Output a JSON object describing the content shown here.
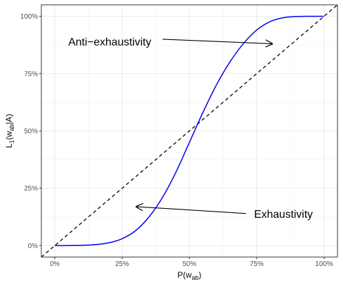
{
  "chart_data": {
    "type": "line",
    "x_axis": {
      "label": "P(w",
      "label_sub": "ab",
      "label_suffix": ")",
      "range": [
        -0.05,
        1.05
      ],
      "ticks": [
        0,
        0.25,
        0.5,
        0.75,
        1
      ],
      "tick_labels": [
        "0%",
        "25%",
        "50%",
        "75%",
        "100%"
      ]
    },
    "y_axis": {
      "label_parts": [
        "L",
        "1",
        "(w",
        "ab",
        "|A)"
      ],
      "range": [
        -0.05,
        1.05
      ],
      "ticks": [
        0,
        0.25,
        0.5,
        0.75,
        1
      ],
      "tick_labels": [
        "0%",
        "25%",
        "50%",
        "75%",
        "100%"
      ]
    },
    "grid": true,
    "series": [
      {
        "style": "solid",
        "color": "#0000ee",
        "x": [
          0,
          0.05,
          0.1,
          0.15,
          0.2,
          0.25,
          0.3,
          0.35,
          0.4,
          0.45,
          0.5,
          0.55,
          0.6,
          0.65,
          0.7,
          0.75,
          0.8,
          0.85,
          0.9,
          0.95,
          1
        ],
        "y": [
          0,
          0.0001,
          0.001,
          0.004,
          0.012,
          0.03,
          0.065,
          0.125,
          0.21,
          0.32,
          0.45,
          0.58,
          0.7,
          0.8,
          0.88,
          0.94,
          0.977,
          0.994,
          0.999,
          1,
          1
        ]
      },
      {
        "style": "dashed",
        "color": "#000000",
        "x": [
          -0.05,
          1.05
        ],
        "y": [
          -0.05,
          1.05
        ]
      }
    ],
    "annotations": [
      {
        "text": "Anti−exhaustivity",
        "text_x": 0.05,
        "text_y": 0.89,
        "arrow_from": [
          0.4,
          0.9
        ],
        "arrow_to": [
          0.81,
          0.88
        ]
      },
      {
        "text": "Exhaustivity",
        "text_x": 0.74,
        "text_y": 0.14,
        "arrow_from": [
          0.71,
          0.14
        ],
        "arrow_to": [
          0.3,
          0.17
        ]
      }
    ]
  }
}
